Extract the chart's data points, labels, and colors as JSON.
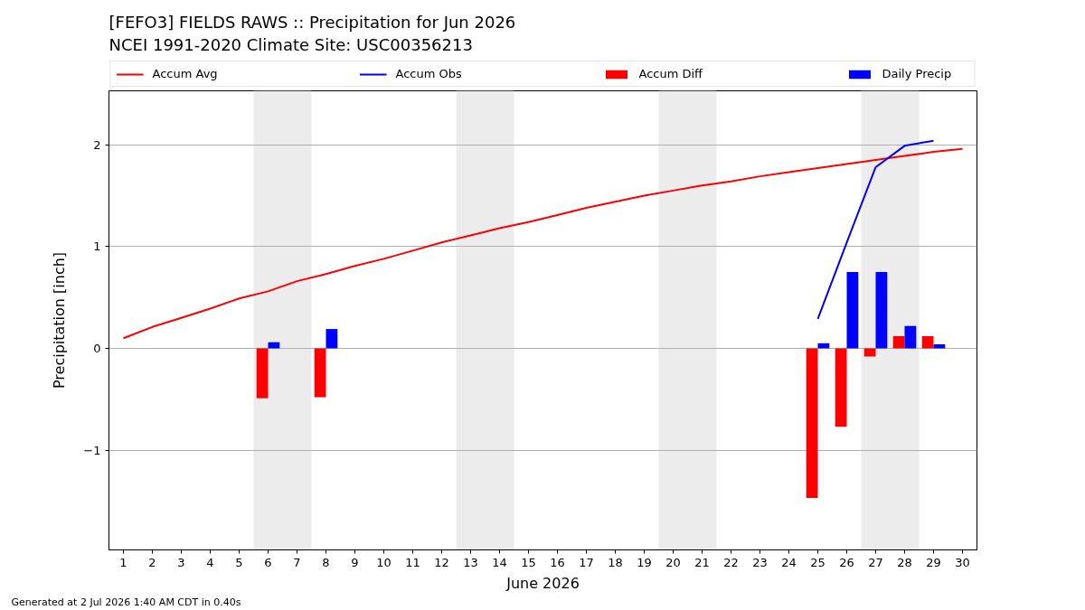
{
  "chart_data": {
    "type": "line",
    "title": "[FEFO3] FIELDS RAWS :: Precipitation for Jun 2026",
    "subtitle": "NCEI 1991-2020 Climate Site: USC00356213",
    "xlabel": "June 2026",
    "ylabel": "Precipitation [inch]",
    "annotations": [
      "Generated at 2 Jul 2026 1:40 AM CDT in 0.40s"
    ],
    "x": [
      1,
      2,
      3,
      4,
      5,
      6,
      7,
      8,
      9,
      10,
      11,
      12,
      13,
      14,
      15,
      16,
      17,
      18,
      19,
      20,
      21,
      22,
      23,
      24,
      25,
      26,
      27,
      28,
      29,
      30
    ],
    "series": [
      {
        "name": "Accum Avg",
        "color": "#ff0000",
        "values": [
          0.1,
          0.21,
          0.3,
          0.39,
          0.49,
          0.56,
          0.66,
          0.73,
          0.81,
          0.88,
          0.96,
          1.04,
          1.11,
          1.18,
          1.24,
          1.31,
          1.38,
          1.44,
          1.5,
          1.55,
          1.6,
          1.64,
          1.69,
          1.73,
          1.77,
          1.81,
          1.85,
          1.89,
          1.93,
          1.96
        ]
      },
      {
        "name": "Accum Obs",
        "color": "#0000ff",
        "values": [
          null,
          null,
          null,
          null,
          null,
          null,
          null,
          null,
          null,
          null,
          null,
          null,
          null,
          null,
          null,
          null,
          null,
          null,
          null,
          null,
          null,
          null,
          null,
          null,
          0.29,
          1.04,
          1.78,
          1.99,
          2.04,
          null
        ]
      },
      {
        "name": "Accum Diff",
        "type": "bar",
        "color": "#ff0000",
        "values": [
          null,
          null,
          null,
          null,
          null,
          -0.49,
          null,
          -0.48,
          null,
          null,
          null,
          null,
          null,
          null,
          null,
          null,
          null,
          null,
          null,
          null,
          null,
          null,
          null,
          null,
          -1.47,
          -0.77,
          -0.08,
          0.12,
          0.12,
          null
        ]
      },
      {
        "name": "Daily Precip",
        "type": "bar",
        "color": "#0000ff",
        "values": [
          null,
          null,
          null,
          null,
          null,
          0.06,
          null,
          0.19,
          null,
          null,
          null,
          null,
          null,
          null,
          null,
          null,
          null,
          null,
          null,
          null,
          null,
          null,
          null,
          null,
          0.05,
          0.75,
          0.75,
          0.22,
          0.04,
          null
        ]
      }
    ],
    "xlim": [
      0.5,
      30.5
    ],
    "xticks": [
      1,
      2,
      3,
      4,
      5,
      6,
      7,
      8,
      9,
      10,
      11,
      12,
      13,
      14,
      15,
      16,
      17,
      18,
      19,
      20,
      21,
      22,
      23,
      24,
      25,
      26,
      27,
      28,
      29,
      30
    ],
    "ylim": [
      -1.98,
      2.53
    ],
    "yticks": [
      {
        "value": -1,
        "label": "−1"
      },
      0,
      1,
      2
    ],
    "bands": [
      {
        "axis": "x",
        "from": 5.5,
        "to": 7.5,
        "color": "#ececec"
      },
      {
        "axis": "x",
        "from": 12.5,
        "to": 14.5,
        "color": "#ececec"
      },
      {
        "axis": "x",
        "from": 19.5,
        "to": 21.5,
        "color": "#ececec"
      },
      {
        "axis": "x",
        "from": 26.5,
        "to": 28.5,
        "color": "#ececec"
      }
    ],
    "grid": "y",
    "legend": "top"
  }
}
